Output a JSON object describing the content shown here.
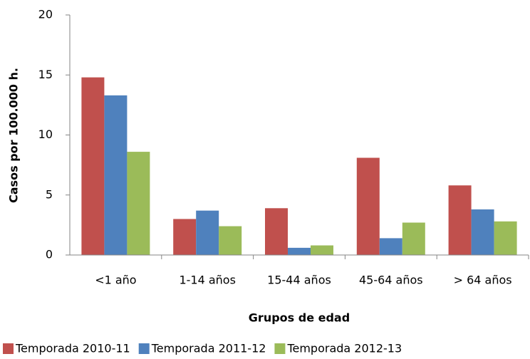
{
  "chart_data": {
    "type": "bar",
    "x_label": "Grupos de edad",
    "y_label": "Casos por 100.000 h.",
    "categories": [
      "<1 año",
      "1-14 años",
      "15-44 años",
      "45-64 años",
      "> 64 años"
    ],
    "series": [
      {
        "name": "Temporada 2010-11",
        "color": "#c0504d",
        "values": [
          14.8,
          3.0,
          3.9,
          8.1,
          5.8
        ]
      },
      {
        "name": "Temporada 2011-12",
        "color": "#4f81bd",
        "values": [
          13.3,
          3.7,
          0.6,
          1.4,
          3.8
        ]
      },
      {
        "name": "Temporada 2012-13",
        "color": "#9bbb59",
        "values": [
          8.6,
          2.4,
          0.8,
          2.7,
          2.8
        ]
      }
    ],
    "ylim": [
      0,
      20
    ],
    "yticks": [
      0,
      5,
      10,
      15,
      20
    ],
    "grid": false,
    "legend": "bottom"
  }
}
